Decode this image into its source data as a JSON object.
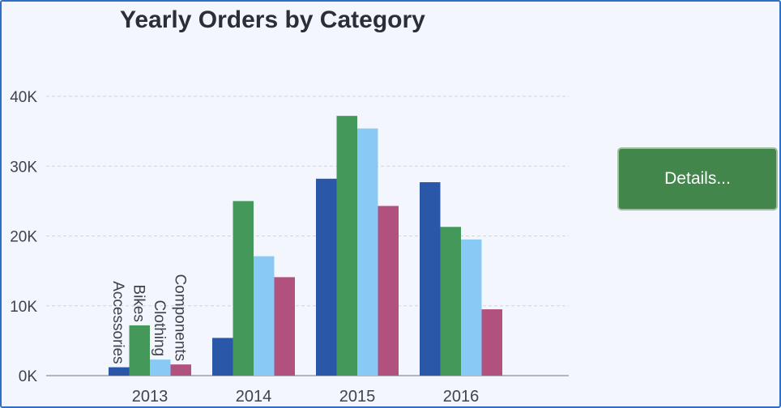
{
  "chart_data": {
    "type": "bar",
    "title": "Yearly Orders by Category",
    "categories": [
      "2013",
      "2014",
      "2015",
      "2016"
    ],
    "series": [
      {
        "name": "Accessories",
        "values": [
          1200,
          5400,
          28200,
          27700
        ],
        "color": "#2b57a8"
      },
      {
        "name": "Bikes",
        "values": [
          7200,
          25000,
          37200,
          21300
        ],
        "color": "#43985a"
      },
      {
        "name": "Clothing",
        "values": [
          2300,
          17100,
          35400,
          19500
        ],
        "color": "#88c9f5"
      },
      {
        "name": "Components",
        "values": [
          1600,
          14100,
          24300,
          9500
        ],
        "color": "#b1517d"
      }
    ],
    "legend": "rotated labels above first category group",
    "ylim": [
      0,
      40000
    ],
    "yticks": [
      {
        "value": 0,
        "label": "0K"
      },
      {
        "value": 10000,
        "label": "10K"
      },
      {
        "value": 20000,
        "label": "20K"
      },
      {
        "value": 30000,
        "label": "30K"
      },
      {
        "value": 40000,
        "label": "40K"
      }
    ],
    "grid": true,
    "xlabel": "",
    "ylabel": ""
  },
  "details_button": {
    "label": "Details..."
  }
}
